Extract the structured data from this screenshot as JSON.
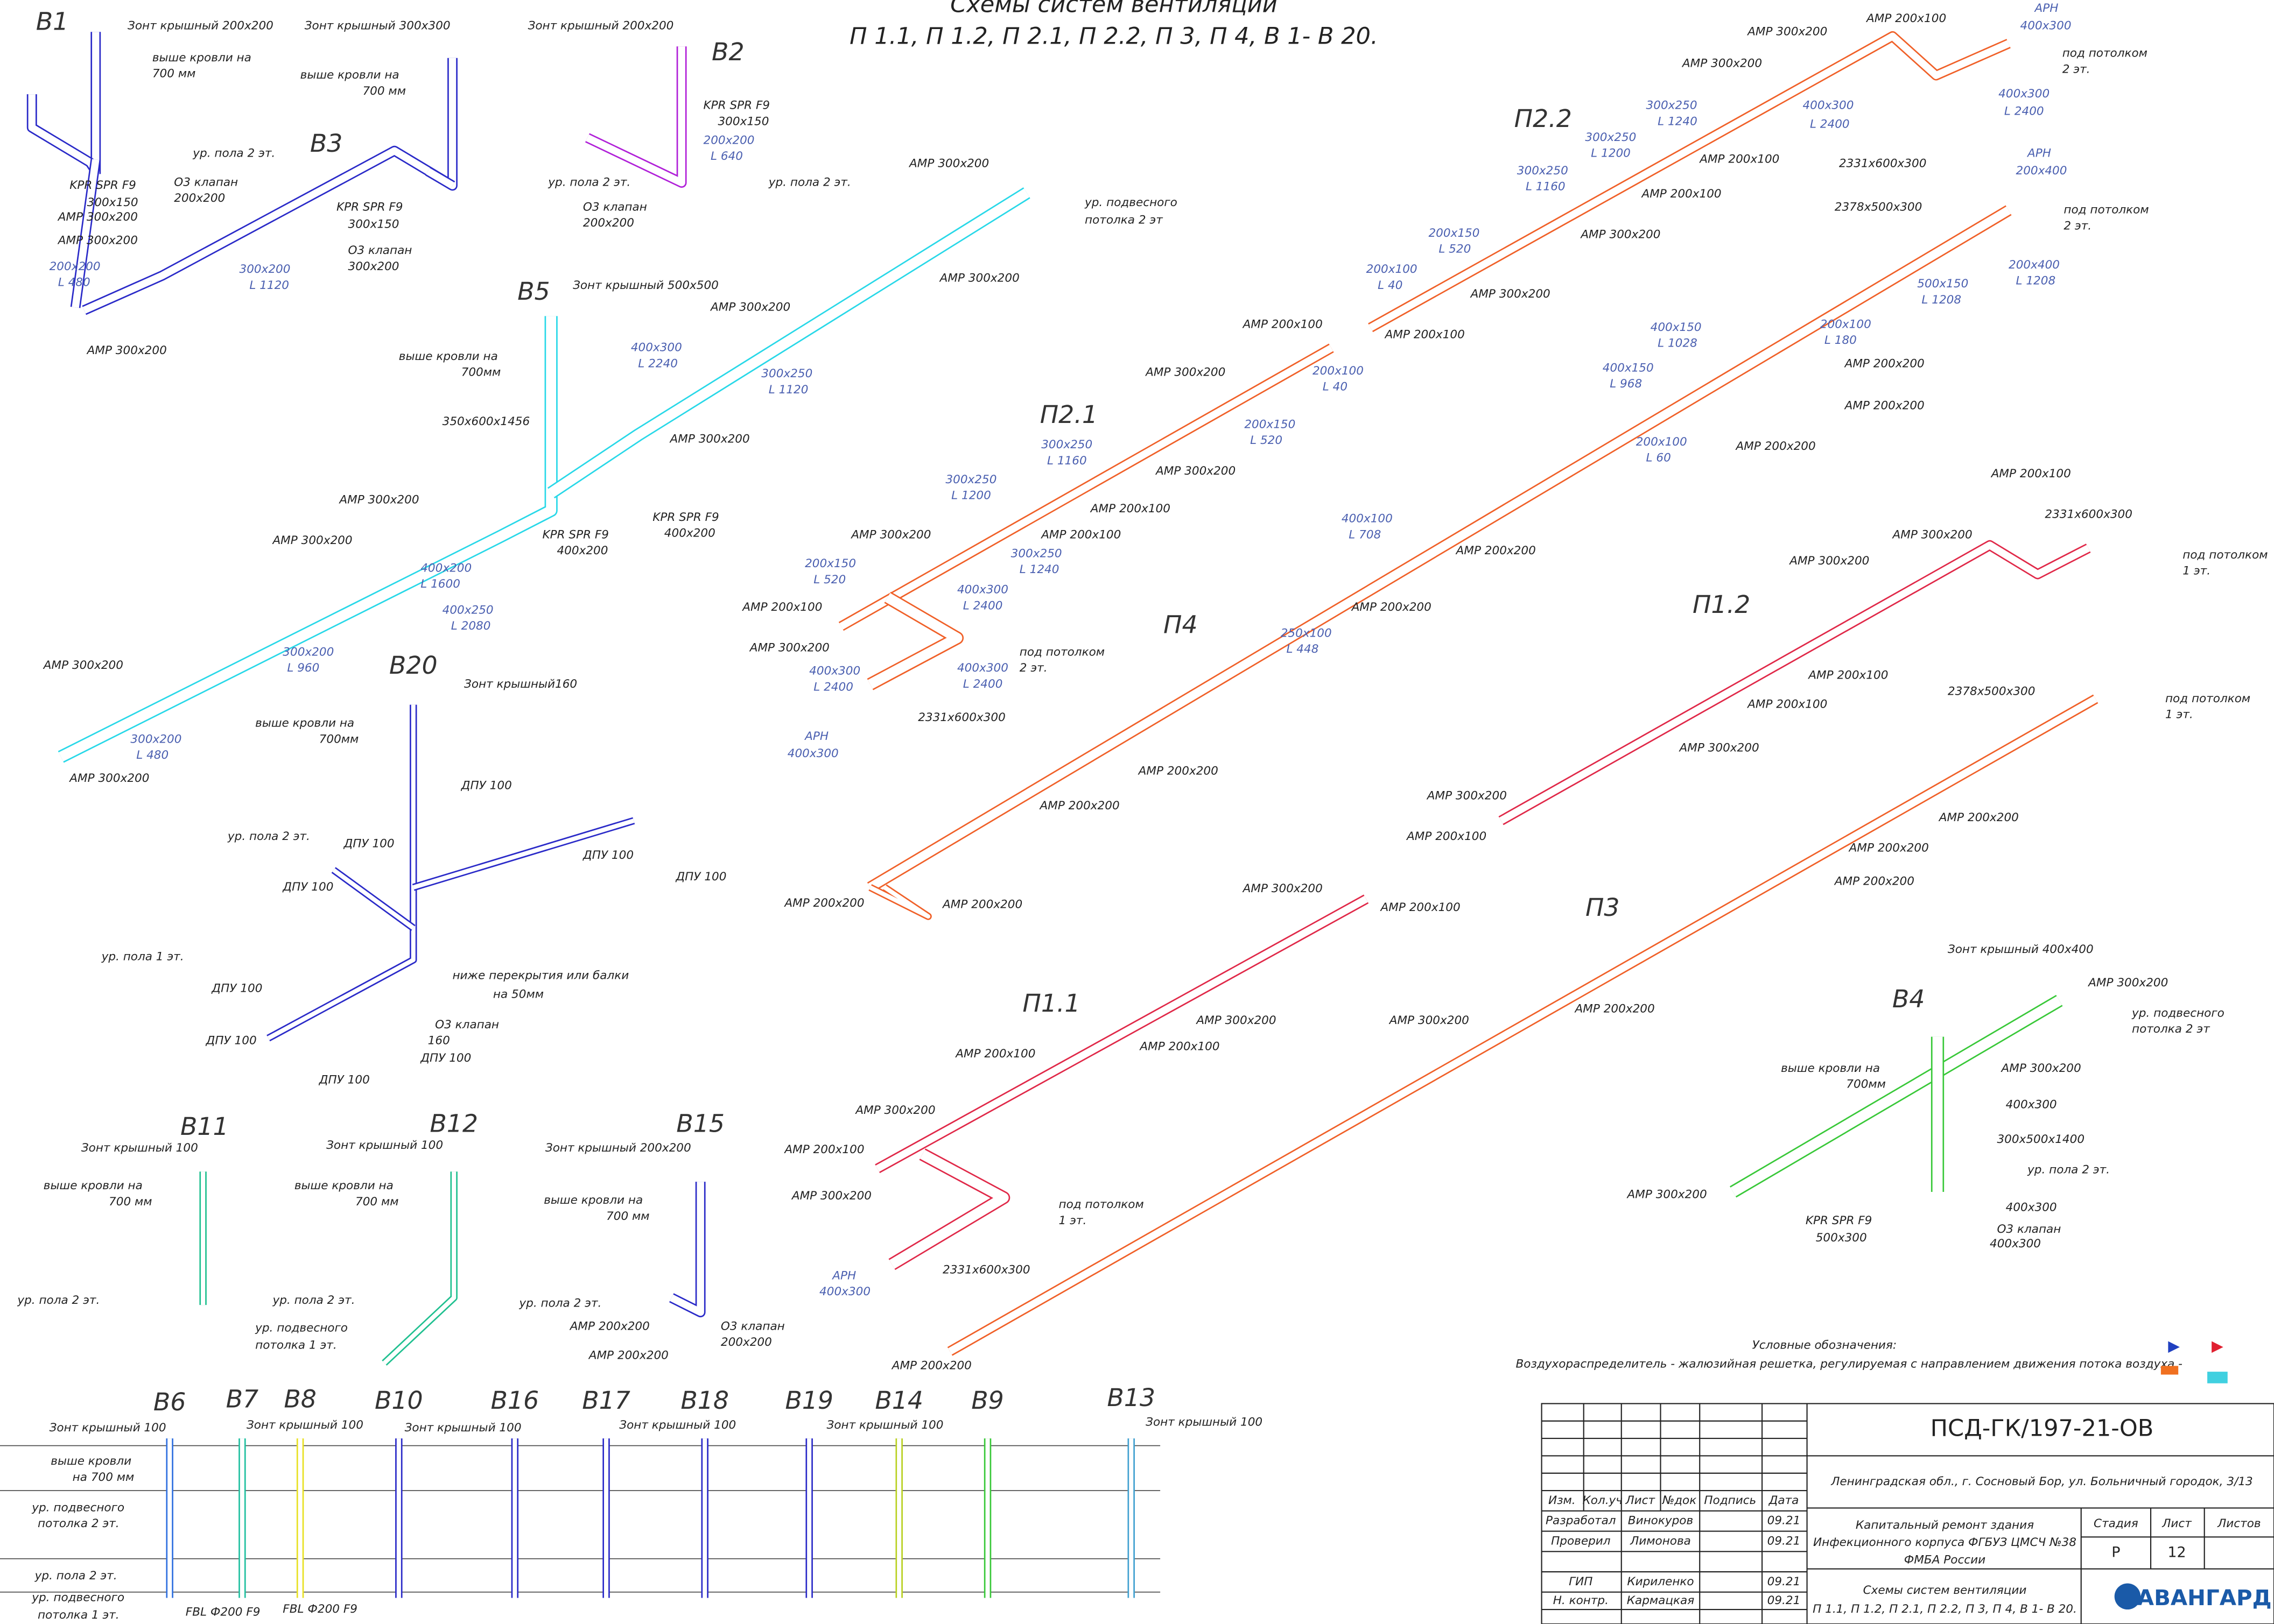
{
  "title": {
    "line1": "Схемы систем вентиляции",
    "line2": "П 1.1, П 1.2, П 2.1, П 2.2, П 3, П 4, В 1- В 20."
  },
  "systems": [
    "В1",
    "В3",
    "В2",
    "В5",
    "В20",
    "В11",
    "В12",
    "В15",
    "В6",
    "В7",
    "В8",
    "В10",
    "В16",
    "В17",
    "В18",
    "В19",
    "В14",
    "В9",
    "В13",
    "П2.2",
    "П2.1",
    "П4",
    "П1.2",
    "П3",
    "П1.1",
    "В4"
  ],
  "annotations": [
    "Зонт крышный 200x200",
    "выше кровли на",
    "700 мм",
    "Зонт крышный 300x300",
    "Зонт крышный 200x200",
    "выше кровли на",
    "700 мм",
    "KPR SPR F9",
    "300x150",
    "О3 клапан",
    "200x200",
    "АМР 300x200",
    "АМР 300x200",
    "ур. пола 2 эт.",
    "АМР 300x200",
    "300x200",
    "L 1120",
    "200x200",
    "L 480",
    "KPR SPR F9",
    "300x150",
    "О3 клапан",
    "300x200",
    "ур. пола 2 эт.",
    "KPR SPR F9",
    "300x150",
    "200x200",
    "L 640",
    "О3 клапан",
    "200x200",
    "ур. пола 2 эт.",
    "АМР 300x200",
    "ур. подвесного",
    "потолка 2 эт",
    "Зонт крышный 500x500",
    "выше кровли на",
    "700мм",
    "350x600x1456",
    "АМР 300x200",
    "АМР 300x200",
    "АМР 300x200",
    "400x300",
    "L 2240",
    "300x250",
    "L 1120",
    "KPR SPR F9",
    "400x200",
    "KPR SPR F9",
    "400x200",
    "АМР 300x200",
    "АМР 300x200",
    "400x200",
    "L 1600",
    "400x250",
    "L 2080",
    "300x200",
    "L 960",
    "АМР 300x200",
    "АМР 300x200",
    "300x200",
    "L 480",
    "Зонт крышный160",
    "выше кровли на",
    "700мм",
    "ур. пола 2 эт.",
    "ур. пола 1 эт.",
    "ниже перекрытия или балки",
    "на 50мм",
    "О3 клапан",
    "160",
    "ДПУ 100",
    "ДПУ 100",
    "ДПУ 100",
    "ДПУ 100",
    "ДПУ 100",
    "ДПУ 100",
    "ДПУ 100",
    "ДПУ 100",
    "ДПУ 100",
    "Зонт крышный 100",
    "Зонт крышный 100",
    "Зонт крышный 200x200",
    "выше кровли на",
    "700 мм",
    "выше кровли на",
    "700 мм",
    "выше кровли на",
    "700 мм",
    "ур. пола 2 эт.",
    "ур. пола 2 эт.",
    "ур. пола 2 эт.",
    "ур. подвесного",
    "потолка 1 эт.",
    "АМР 200x200",
    "АМР 200x200",
    "О3 клапан",
    "200x200",
    "АМР 200x100",
    "АМР 300x200",
    "АМР 300x200",
    "АМР 200x100",
    "АМР 200x100",
    "АМР 300x200",
    "АМР 300x200",
    "АМР 200x100",
    "под потолком",
    "2 эт.",
    "2331x600x300",
    "2378x500x300",
    "под потолком",
    "2 эт.",
    "АМР 200x200",
    "АМР 200x200",
    "АМР 200x200",
    "АМР 200x200",
    "АМР 200x200",
    "АМР 200x100",
    "АМР 300x200",
    "АМР 300x200",
    "АМР 200x100",
    "АМР 200x100",
    "АМР 300x200",
    "АМР 200x100",
    "АМР 300x200",
    "под потолком",
    "2 эт.",
    "2331x600x300",
    "АРН",
    "400x300",
    "300x250",
    "L 1240",
    "300x250",
    "L 1200",
    "300x250",
    "L 1160",
    "200x150",
    "L 520",
    "200x100",
    "L 40",
    "400x300",
    "L 2400",
    "400x300",
    "L 2400",
    "АРН",
    "400x300",
    "АРН",
    "200x400",
    "500x150",
    "L 1208",
    "200x400",
    "L 1208",
    "400x150",
    "L 1028",
    "400x150",
    "L 968",
    "200x100",
    "L 180",
    "200x100",
    "L 60",
    "400x100",
    "L 708",
    "250x100",
    "L 448",
    "200x100",
    "L 40",
    "200x150",
    "L 520",
    "300x250",
    "L 1160",
    "300x250",
    "L 1200",
    "300x250",
    "L 1240",
    "200x150",
    "L 520",
    "400x300",
    "L 2400",
    "400x300",
    "L 2400",
    "400x300",
    "L 2400",
    "АМР 200x100",
    "2331x600x300",
    "АМР 300x200",
    "АМР 300x200",
    "АМР 200x100",
    "АМР 200x100",
    "АМР 300x200",
    "АМР 300x200",
    "АМР 200x100",
    "под потолком",
    "1 эт.",
    "2378x500x300",
    "под потолком",
    "1 эт.",
    "АМР 200x200",
    "АМР 200x200",
    "АМР 200x200",
    "АМР 200x200",
    "АМР 300x200",
    "АМР 200x200",
    "АМР 200x200",
    "АМР 200x200",
    "АМР 200x200",
    "АМР 300x200",
    "АМР 200x100",
    "АМР 300x200",
    "АМР 200x100",
    "АМР 200x100",
    "АМР 300x200",
    "АМР 200x100",
    "АМР 300x200",
    "под потолком",
    "1 эт.",
    "2331x600x300",
    "АРН",
    "400x300",
    "АМР 200x200",
    "Зонт крышный 400x400",
    "АМР 300x200",
    "ур. подвесного",
    "потолка 2 эт",
    "выше кровли на",
    "700мм",
    "АМР 300x200",
    "400x300",
    "300x500x1400",
    "ур. пола 2 эт.",
    "400x300",
    "О3 клапан",
    "400x300",
    "KPR SPR F9",
    "500x300",
    "АМР 300x200",
    "Зонт крышный 100",
    "выше кровли",
    "на 700 мм",
    "ур. подвесного",
    "потолка 2 эт.",
    "ур. пола 2 эт.",
    "ур. подвесного",
    "потолка 1 эт.",
    "FBL Ф200 F9",
    "FBL Ф200 F9",
    "Зонт крышный 100",
    "Зонт крышный 100",
    "Зонт крышный 100",
    "Зонт крышный 100",
    "Зонт крышный 100"
  ],
  "legend": {
    "title": "Условные обозначения:",
    "text": "Воздухораспределитель - жалюзийная решетка, регулируемая с направлением движения потока воздуха -"
  },
  "title_block": {
    "code": "ПСД-ГК/197-21-ОВ",
    "address": "Ленинградская обл., г. Сосновый Бор, ул. Больничный городок, 3/13",
    "headers": [
      "Изм.",
      "Кол.уч",
      "Лист",
      "№док",
      "Подпись",
      "Дата"
    ],
    "signatures": [
      [
        "Разработал",
        "Винокуров",
        "09.21"
      ],
      [
        "Проверил",
        "Лимонова",
        "09.21"
      ],
      [
        "ГИП",
        "Кириленко",
        "09.21"
      ],
      [
        "Н. контр.",
        "Кармацкая",
        "09.21"
      ]
    ],
    "project": [
      "Капитальный ремонт здания",
      "Инфекционного корпуса ФГБУЗ ЦМСЧ №38",
      "ФМБА России"
    ],
    "stage_header": "Стадия",
    "sheet_header": "Лист",
    "sheets_header": "Листов",
    "stage": "Р",
    "sheet": "12",
    "sheet_title": [
      "Схемы систем вентиляции",
      "П 1.1, П 1.2, П 2.1, П 2.2, П 3, П 4, В 1- В 20."
    ],
    "company": "АВАНГАРД"
  }
}
